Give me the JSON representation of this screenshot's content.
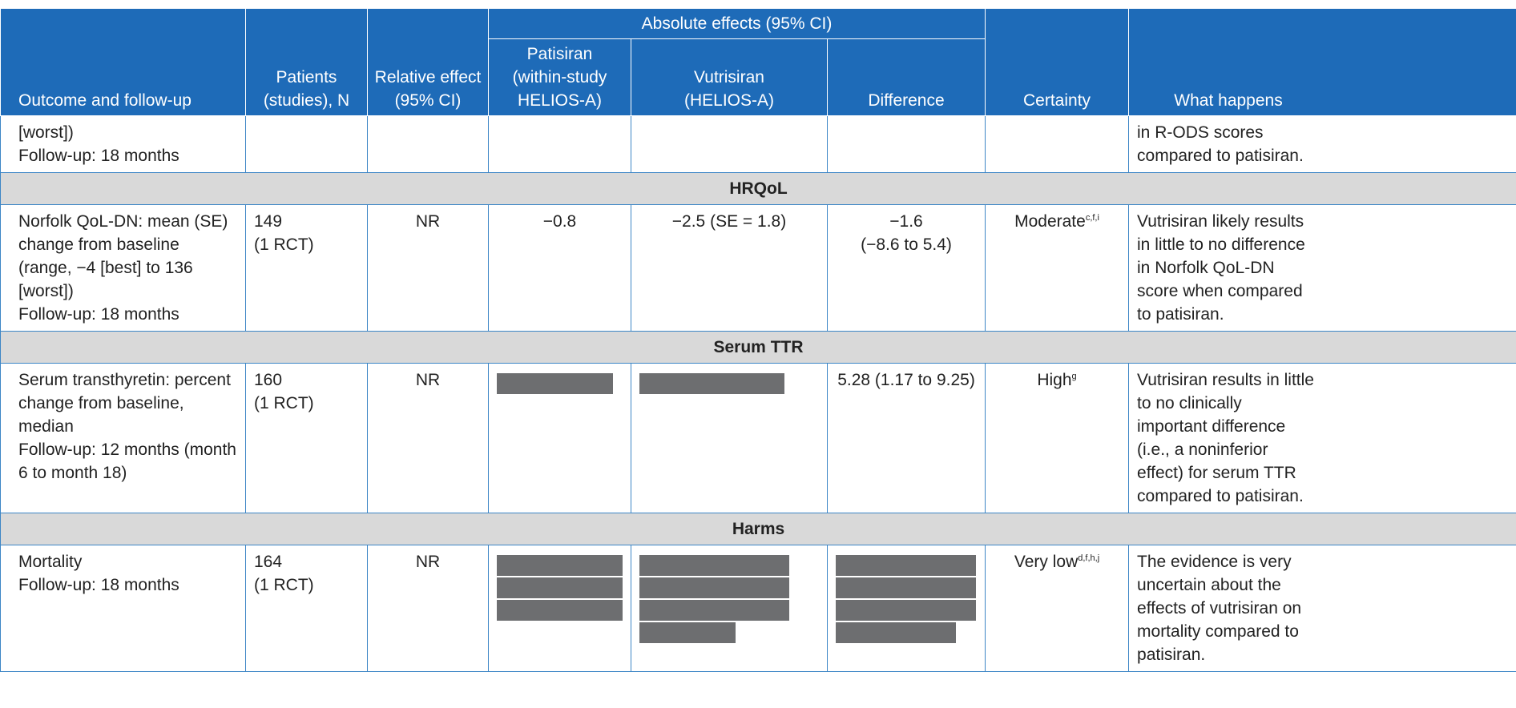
{
  "colors": {
    "header_bg": "#1e6bb8",
    "section_bg": "#d9d9d9",
    "border": "#3d86c6",
    "redaction": "#6d6e70"
  },
  "headers": {
    "outcome": "Outcome and follow-up",
    "patients": [
      "Patients",
      "(studies), N"
    ],
    "relative": [
      "Relative effect",
      "(95% CI)"
    ],
    "absolute": "Absolute effects (95% CI)",
    "patisiran": [
      "Patisiran",
      "(within-study",
      "HELIOS-A)"
    ],
    "vutrisiran": [
      "Vutrisiran",
      "(HELIOS-A)"
    ],
    "difference": "Difference",
    "certainty": "Certainty",
    "what": "What happens"
  },
  "row_cont": {
    "outcome": [
      "[worst])",
      "Follow-up: 18 months"
    ],
    "what": "in R-ODS scores compared to patisiran."
  },
  "sections": {
    "hrqol": "HRQoL",
    "ttr": "Serum TTR",
    "harms": "Harms"
  },
  "row_norfolk": {
    "outcome": [
      "Norfolk QoL-DN: mean (SE) change from baseline (range, −4 [best] to 136 [worst])",
      "Follow-up: 18 months"
    ],
    "patients": [
      "149",
      "(1 RCT)"
    ],
    "relative": "NR",
    "patisiran": "−0.8",
    "vutrisiran": "−2.5 (SE = 1.8)",
    "difference": [
      "−1.6",
      "(−8.6 to 5.4)"
    ],
    "certainty": "Moderate",
    "certainty_sup": "c,f,i",
    "what": "Vutrisiran likely results in little to no difference in Norfolk QoL-DN score when compared to patisiran."
  },
  "row_ttr": {
    "outcome": [
      "Serum transthyretin: percent change from baseline, median",
      "Follow-up: 12 months (month 6 to month 18)"
    ],
    "patients": [
      "160",
      "(1 RCT)"
    ],
    "relative": "NR",
    "difference": "5.28 (1.17 to 9.25)",
    "certainty": "High",
    "certainty_sup": "g",
    "what": "Vutrisiran results in little to no clinically important difference (i.e., a noninferior effect) for serum TTR compared to patisiran."
  },
  "row_mortality": {
    "outcome": [
      "Mortality",
      "Follow-up: 18 months"
    ],
    "patients": [
      "164",
      "(1 RCT)"
    ],
    "relative": "NR",
    "certainty": "Very low",
    "certainty_sup": "d,f,h,j",
    "what": "The evidence is very uncertain about the effects of vutrisiran on mortality compared to patisiran."
  }
}
